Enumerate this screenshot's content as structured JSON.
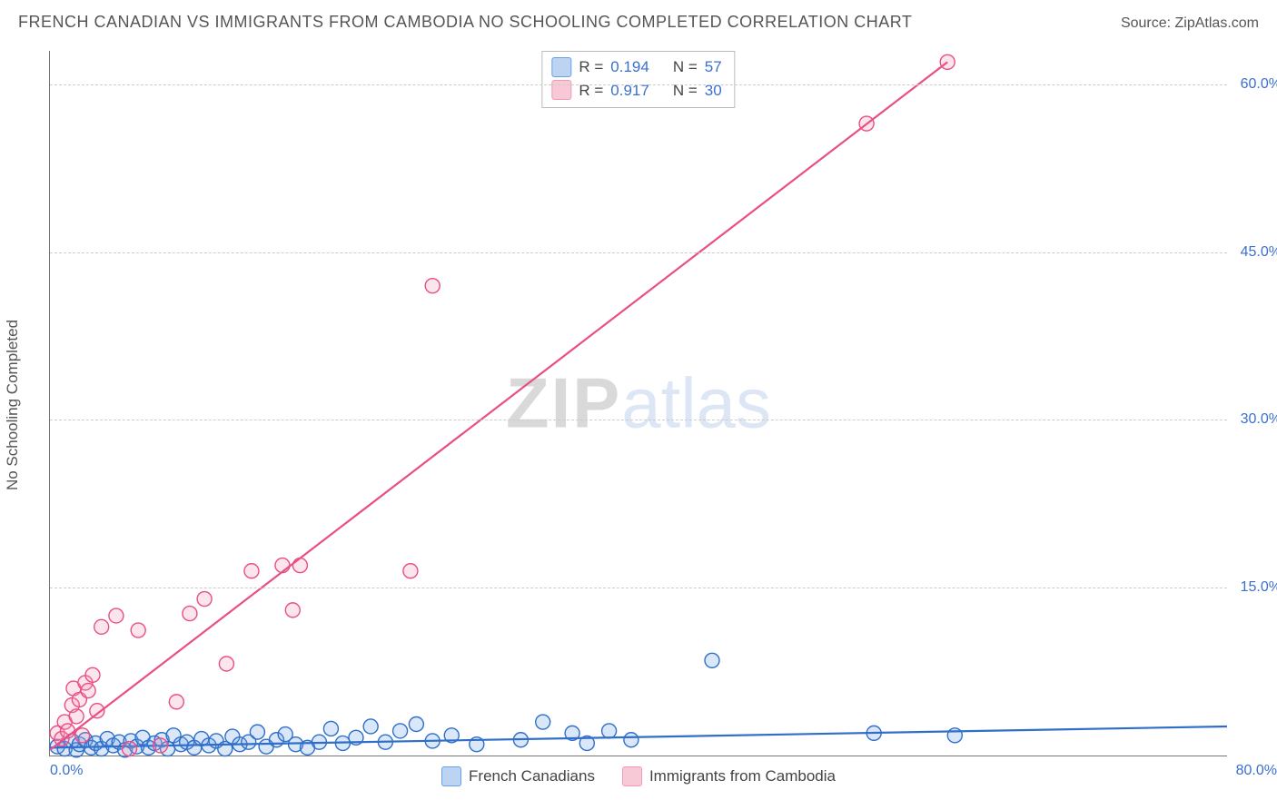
{
  "title": "FRENCH CANADIAN VS IMMIGRANTS FROM CAMBODIA NO SCHOOLING COMPLETED CORRELATION CHART",
  "source_label": "Source: ",
  "source_value": "ZipAtlas.com",
  "y_axis_label": "No Schooling Completed",
  "watermark_part1": "ZIP",
  "watermark_part2": "atlas",
  "chart": {
    "type": "scatter_with_regression",
    "background_color": "#ffffff",
    "grid_color": "#cccccc",
    "axis_color": "#777777",
    "tick_color": "#3b6fd1",
    "xlim": [
      0,
      80
    ],
    "ylim": [
      0,
      63
    ],
    "xticks": [
      {
        "value": 0,
        "label": "0.0%"
      },
      {
        "value": 80,
        "label": "80.0%"
      }
    ],
    "yticks": [
      {
        "value": 15,
        "label": "15.0%"
      },
      {
        "value": 30,
        "label": "30.0%"
      },
      {
        "value": 45,
        "label": "45.0%"
      },
      {
        "value": 60,
        "label": "60.0%"
      }
    ],
    "marker_radius": 8,
    "marker_fill_opacity": 0.25,
    "marker_stroke_width": 1.4,
    "trend_line_width": 2.2,
    "series": [
      {
        "id": "french_canadians",
        "label": "French Canadians",
        "marker_fill": "#6aa0e8",
        "marker_stroke": "#2f6fc9",
        "line_color": "#2f6fc9",
        "swatch_fill": "#bcd3f2",
        "swatch_border": "#6aa0e8",
        "R": "0.194",
        "N": "57",
        "trend": {
          "x1": 0,
          "y1": 0.7,
          "x2": 80,
          "y2": 2.6
        },
        "points": [
          [
            0.5,
            0.8
          ],
          [
            1.0,
            0.6
          ],
          [
            1.5,
            1.3
          ],
          [
            1.8,
            0.5
          ],
          [
            2.0,
            1.0
          ],
          [
            2.4,
            1.4
          ],
          [
            2.8,
            0.7
          ],
          [
            3.1,
            1.1
          ],
          [
            3.5,
            0.6
          ],
          [
            3.9,
            1.5
          ],
          [
            4.3,
            0.9
          ],
          [
            4.7,
            1.2
          ],
          [
            5.1,
            0.5
          ],
          [
            5.5,
            1.3
          ],
          [
            5.9,
            0.8
          ],
          [
            6.3,
            1.6
          ],
          [
            6.7,
            0.7
          ],
          [
            7.1,
            1.1
          ],
          [
            7.6,
            1.4
          ],
          [
            8.0,
            0.6
          ],
          [
            8.4,
            1.8
          ],
          [
            8.9,
            1.0
          ],
          [
            9.3,
            1.2
          ],
          [
            9.8,
            0.7
          ],
          [
            10.3,
            1.5
          ],
          [
            10.8,
            0.9
          ],
          [
            11.3,
            1.3
          ],
          [
            11.9,
            0.6
          ],
          [
            12.4,
            1.7
          ],
          [
            12.9,
            1.0
          ],
          [
            13.5,
            1.2
          ],
          [
            14.1,
            2.1
          ],
          [
            14.7,
            0.8
          ],
          [
            15.4,
            1.4
          ],
          [
            16.0,
            1.9
          ],
          [
            16.7,
            1.0
          ],
          [
            17.5,
            0.7
          ],
          [
            18.3,
            1.2
          ],
          [
            19.1,
            2.4
          ],
          [
            19.9,
            1.1
          ],
          [
            20.8,
            1.6
          ],
          [
            21.8,
            2.6
          ],
          [
            22.8,
            1.2
          ],
          [
            23.8,
            2.2
          ],
          [
            24.9,
            2.8
          ],
          [
            26.0,
            1.3
          ],
          [
            27.3,
            1.8
          ],
          [
            29.0,
            1.0
          ],
          [
            32.0,
            1.4
          ],
          [
            33.5,
            3.0
          ],
          [
            35.5,
            2.0
          ],
          [
            36.5,
            1.1
          ],
          [
            38.0,
            2.2
          ],
          [
            39.5,
            1.4
          ],
          [
            45.0,
            8.5
          ],
          [
            56.0,
            2.0
          ],
          [
            61.5,
            1.8
          ]
        ]
      },
      {
        "id": "cambodia",
        "label": "Immigrants from Cambodia",
        "marker_fill": "#f29ab4",
        "marker_stroke": "#e94e87",
        "line_color": "#e94e87",
        "swatch_fill": "#f7c8d5",
        "swatch_border": "#f29ab4",
        "R": "0.917",
        "N": "30",
        "trend": {
          "x1": 0,
          "y1": 0.5,
          "x2": 61,
          "y2": 62
        },
        "points": [
          [
            0.5,
            2.0
          ],
          [
            0.8,
            1.5
          ],
          [
            1.0,
            3.0
          ],
          [
            1.2,
            2.2
          ],
          [
            1.5,
            4.5
          ],
          [
            1.6,
            6.0
          ],
          [
            1.8,
            3.5
          ],
          [
            2.0,
            5.0
          ],
          [
            2.2,
            1.8
          ],
          [
            2.4,
            6.5
          ],
          [
            2.6,
            5.8
          ],
          [
            2.9,
            7.2
          ],
          [
            3.2,
            4.0
          ],
          [
            3.5,
            11.5
          ],
          [
            4.5,
            12.5
          ],
          [
            5.4,
            0.6
          ],
          [
            6.0,
            11.2
          ],
          [
            7.5,
            0.9
          ],
          [
            8.6,
            4.8
          ],
          [
            9.5,
            12.7
          ],
          [
            10.5,
            14.0
          ],
          [
            12.0,
            8.2
          ],
          [
            13.7,
            16.5
          ],
          [
            15.8,
            17.0
          ],
          [
            16.5,
            13.0
          ],
          [
            17.0,
            17.0
          ],
          [
            24.5,
            16.5
          ],
          [
            26.0,
            42.0
          ],
          [
            55.5,
            56.5
          ],
          [
            61.0,
            62.0
          ]
        ]
      }
    ]
  },
  "stats_box": {
    "r_label": "R =",
    "n_label": "N ="
  },
  "legend_bottom_y_offset": 12
}
